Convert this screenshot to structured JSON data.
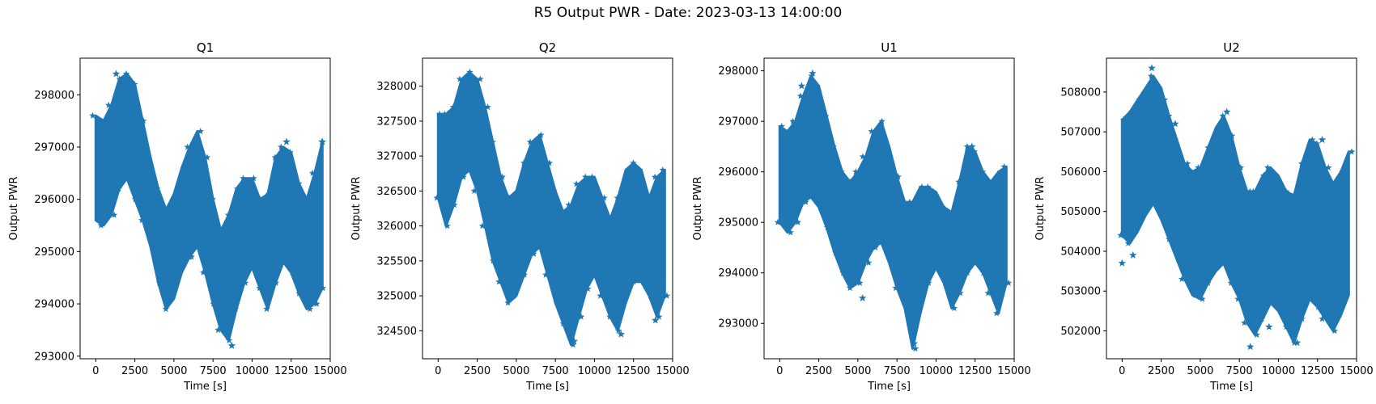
{
  "figure": {
    "title": "R5 Output PWR - Date: 2023-03-13 14:00:00"
  },
  "colors": {
    "series": "#1f77b4"
  },
  "chart_data": [
    {
      "type": "scatter",
      "marker": "star",
      "title": "Q1",
      "xlabel": "Time [s]",
      "ylabel": "Output PWR",
      "xlim": [
        -1000,
        15000
      ],
      "ylim": [
        292950,
        298700
      ],
      "xticks": [
        0,
        2500,
        5000,
        7500,
        10000,
        12500,
        15000
      ],
      "yticks": [
        293000,
        294000,
        295000,
        296000,
        297000,
        298000
      ],
      "series": [
        {
          "x": [
            0,
            500,
            1000,
            1500,
            2000,
            2500,
            3000,
            3500,
            4000,
            4500,
            5000,
            5500,
            6000,
            6500,
            7000,
            7500,
            8000,
            8500,
            9000,
            9500,
            10000,
            10500,
            11000,
            11500,
            12000,
            12500,
            13000,
            13500,
            14000,
            14500
          ],
          "lo": [
            295600,
            295500,
            295700,
            296200,
            296400,
            296000,
            295600,
            295100,
            294400,
            293900,
            294100,
            294600,
            294900,
            295100,
            294600,
            294000,
            293500,
            293300,
            293900,
            294400,
            294700,
            294300,
            293900,
            294400,
            294800,
            294600,
            294200,
            293900,
            294000,
            294300
          ],
          "hi": [
            297600,
            297500,
            297800,
            298300,
            298400,
            298200,
            297500,
            296800,
            296200,
            295800,
            296100,
            296600,
            297000,
            297300,
            296800,
            296000,
            295400,
            295700,
            296200,
            296400,
            296400,
            296000,
            296100,
            296800,
            297000,
            296900,
            296300,
            296000,
            296500,
            297100
          ]
        }
      ],
      "outliers": [
        [
          1300,
          298400
        ],
        [
          8700,
          293200
        ],
        [
          6000,
          294900
        ],
        [
          12200,
          297100
        ],
        [
          14500,
          297100
        ]
      ]
    },
    {
      "type": "scatter",
      "marker": "star",
      "title": "Q2",
      "xlabel": "Time [s]",
      "ylabel": "Output PWR",
      "xlim": [
        -1000,
        15000
      ],
      "ylim": [
        324100,
        328400
      ],
      "xticks": [
        0,
        2500,
        5000,
        7500,
        10000,
        12500,
        15000
      ],
      "yticks": [
        324500,
        325000,
        325500,
        326000,
        326500,
        327000,
        327500,
        328000
      ],
      "series": [
        {
          "x": [
            0,
            500,
            1000,
            1500,
            2000,
            2500,
            3000,
            3500,
            4000,
            4500,
            5000,
            5500,
            6000,
            6500,
            7000,
            7500,
            8000,
            8500,
            9000,
            9500,
            10000,
            10500,
            11000,
            11500,
            12000,
            12500,
            13000,
            13500,
            14000,
            14500
          ],
          "lo": [
            326400,
            326000,
            326300,
            326700,
            326800,
            326500,
            326000,
            325500,
            325200,
            324900,
            325000,
            325300,
            325600,
            325700,
            325300,
            324900,
            324600,
            324300,
            324700,
            325100,
            325300,
            325000,
            324700,
            324500,
            324900,
            325200,
            325200,
            325000,
            324700,
            325000
          ],
          "hi": [
            327600,
            327600,
            327700,
            328100,
            328200,
            328100,
            327700,
            327200,
            326700,
            326400,
            326500,
            326900,
            327200,
            327300,
            326900,
            326500,
            326200,
            326300,
            326600,
            326700,
            326700,
            326400,
            326100,
            326400,
            326800,
            326900,
            326800,
            326400,
            326700,
            326800
          ]
        }
      ],
      "outliers": [
        [
          13900,
          324650
        ],
        [
          8700,
          324350
        ],
        [
          11700,
          324450
        ]
      ]
    },
    {
      "type": "scatter",
      "marker": "star",
      "title": "U1",
      "xlabel": "Time [s]",
      "ylabel": "Output PWR",
      "xlim": [
        -1000,
        15000
      ],
      "ylim": [
        292300,
        298250
      ],
      "xticks": [
        0,
        2500,
        5000,
        7500,
        10000,
        12500,
        15000
      ],
      "yticks": [
        293000,
        294000,
        295000,
        296000,
        297000,
        298000
      ],
      "series": [
        {
          "x": [
            0,
            500,
            1000,
            1500,
            2000,
            2500,
            3000,
            3500,
            4000,
            4500,
            5000,
            5500,
            6000,
            6500,
            7000,
            7500,
            8000,
            8500,
            9000,
            9500,
            10000,
            10500,
            11000,
            11500,
            12000,
            12500,
            13000,
            13500,
            14000,
            14500
          ],
          "lo": [
            295000,
            294800,
            295000,
            295400,
            295500,
            295300,
            294900,
            294400,
            294000,
            293700,
            293800,
            294200,
            294500,
            294600,
            294200,
            293700,
            293300,
            292500,
            293200,
            293800,
            294100,
            293800,
            293300,
            293600,
            294000,
            294200,
            294000,
            293600,
            293200,
            293800
          ],
          "hi": [
            296900,
            296800,
            297000,
            297500,
            297900,
            297700,
            297100,
            296500,
            296000,
            295800,
            296000,
            296300,
            296800,
            297000,
            296500,
            295900,
            295400,
            295400,
            295700,
            295700,
            295600,
            295300,
            295200,
            295800,
            296500,
            296400,
            296000,
            295800,
            296000,
            296100
          ]
        }
      ],
      "outliers": [
        [
          1400,
          297700
        ],
        [
          2100,
          297950
        ],
        [
          5300,
          293500
        ],
        [
          8600,
          292600
        ],
        [
          12300,
          296500
        ]
      ]
    },
    {
      "type": "scatter",
      "marker": "star",
      "title": "U2",
      "xlabel": "Time [s]",
      "ylabel": "Output PWR",
      "xlim": [
        -1000,
        15000
      ],
      "ylim": [
        501300,
        508850
      ],
      "xticks": [
        0,
        2500,
        5000,
        7500,
        10000,
        12500,
        15000
      ],
      "yticks": [
        502000,
        503000,
        504000,
        505000,
        506000,
        507000,
        508000
      ],
      "series": [
        {
          "x": [
            0,
            500,
            1000,
            1500,
            2000,
            2500,
            3000,
            3500,
            4000,
            4500,
            5000,
            5500,
            6000,
            6500,
            7000,
            7500,
            8000,
            8500,
            9000,
            9500,
            10000,
            10500,
            11000,
            11500,
            12000,
            12500,
            13000,
            13500,
            14000,
            14500
          ],
          "lo": [
            504400,
            504200,
            504500,
            504900,
            505200,
            504800,
            504300,
            503800,
            503300,
            502900,
            502800,
            503200,
            503500,
            503700,
            503200,
            502800,
            502200,
            501900,
            502300,
            502700,
            502500,
            502100,
            501700,
            502300,
            502800,
            502600,
            502300,
            502000,
            502400,
            502900
          ],
          "hi": [
            507300,
            507500,
            507800,
            508100,
            508400,
            508100,
            507400,
            506800,
            506200,
            506000,
            506100,
            506600,
            507100,
            507400,
            506900,
            506100,
            505500,
            505500,
            505900,
            506100,
            505900,
            505500,
            505400,
            506200,
            506800,
            506700,
            506100,
            505700,
            506000,
            506500
          ]
        }
      ],
      "outliers": [
        [
          0,
          503700
        ],
        [
          700,
          503900
        ],
        [
          1900,
          508600
        ],
        [
          2700,
          507800
        ],
        [
          3400,
          507200
        ],
        [
          6700,
          507500
        ],
        [
          8200,
          501600
        ],
        [
          8300,
          505400
        ],
        [
          9400,
          502100
        ],
        [
          11200,
          501700
        ],
        [
          12800,
          506800
        ],
        [
          13700,
          502300
        ]
      ]
    }
  ]
}
